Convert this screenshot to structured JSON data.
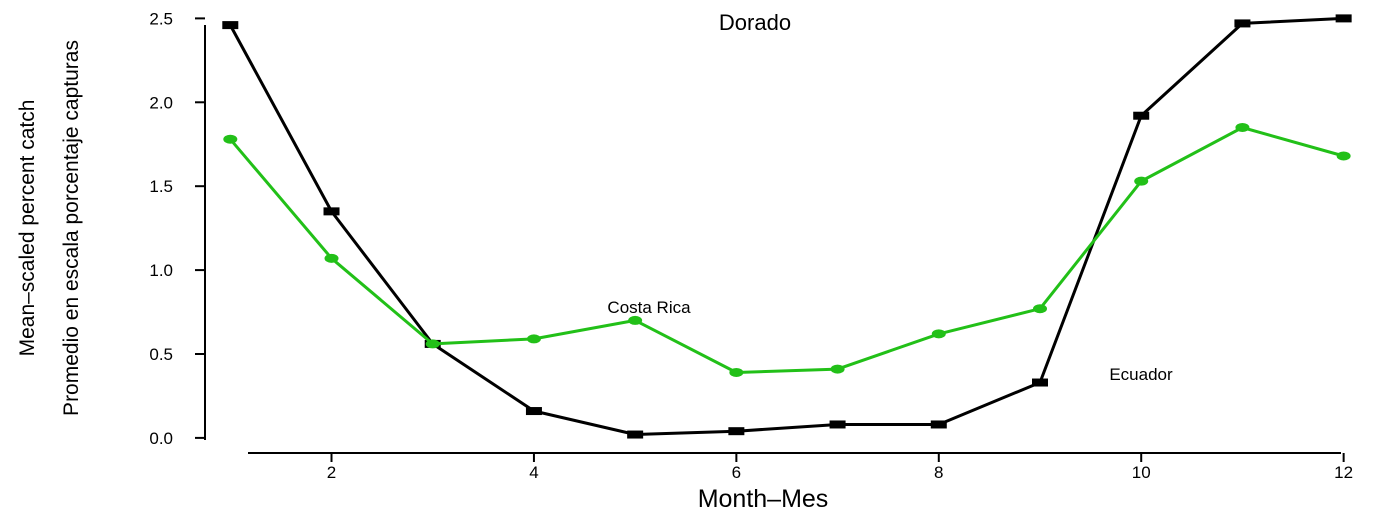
{
  "chart_data": {
    "type": "line",
    "title": "Dorado",
    "xlabel": "Month–Mes",
    "ylabel_lines": [
      "Mean–scaled percent catch",
      "Promedio en escala porcentaje capturas"
    ],
    "xlim": [
      0.75,
      12.3
    ],
    "ylim": [
      -0.09,
      2.55
    ],
    "x_ticks": [
      2,
      4,
      6,
      8,
      10,
      12
    ],
    "x_tick_labels": [
      "2",
      "4",
      "6",
      "8",
      "10",
      "12"
    ],
    "y_ticks": [
      0.0,
      0.5,
      1.0,
      1.5,
      2.0,
      2.5
    ],
    "y_tick_labels": [
      "0.0",
      "0.5",
      "1.0",
      "1.5",
      "2.0",
      "2.5"
    ],
    "x": [
      1,
      2,
      3,
      4,
      5,
      6,
      7,
      8,
      9,
      10,
      11,
      12
    ],
    "series": [
      {
        "name": "Ecuador",
        "color": "#000000",
        "marker": "square",
        "values": [
          2.46,
          1.35,
          0.56,
          0.16,
          0.02,
          0.04,
          0.08,
          0.08,
          0.33,
          1.92,
          2.47,
          2.5
        ]
      },
      {
        "name": "Costa Rica",
        "color": "#22c018",
        "marker": "circle",
        "values": [
          1.78,
          1.07,
          0.56,
          0.59,
          0.7,
          0.39,
          0.41,
          0.62,
          0.77,
          1.53,
          1.85,
          1.68
        ]
      }
    ],
    "grid": false,
    "legend": "none"
  }
}
